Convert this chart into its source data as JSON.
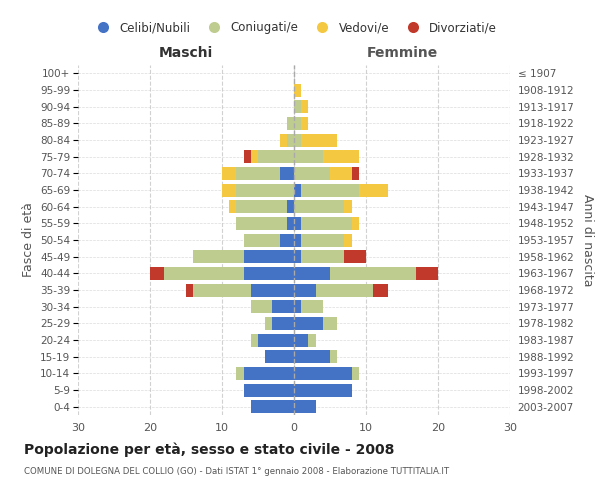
{
  "age_groups": [
    "0-4",
    "5-9",
    "10-14",
    "15-19",
    "20-24",
    "25-29",
    "30-34",
    "35-39",
    "40-44",
    "45-49",
    "50-54",
    "55-59",
    "60-64",
    "65-69",
    "70-74",
    "75-79",
    "80-84",
    "85-89",
    "90-94",
    "95-99",
    "100+"
  ],
  "birth_years": [
    "2003-2007",
    "1998-2002",
    "1993-1997",
    "1988-1992",
    "1983-1987",
    "1978-1982",
    "1973-1977",
    "1968-1972",
    "1963-1967",
    "1958-1962",
    "1953-1957",
    "1948-1952",
    "1943-1947",
    "1938-1942",
    "1933-1937",
    "1928-1932",
    "1923-1927",
    "1918-1922",
    "1913-1917",
    "1908-1912",
    "≤ 1907"
  ],
  "males": {
    "celibi": [
      6,
      7,
      7,
      4,
      5,
      3,
      3,
      6,
      7,
      7,
      2,
      1,
      1,
      0,
      2,
      0,
      0,
      0,
      0,
      0,
      0
    ],
    "coniugati": [
      0,
      0,
      1,
      0,
      1,
      1,
      3,
      8,
      11,
      7,
      5,
      7,
      7,
      8,
      6,
      5,
      1,
      1,
      0,
      0,
      0
    ],
    "vedovi": [
      0,
      0,
      0,
      0,
      0,
      0,
      0,
      0,
      0,
      0,
      0,
      0,
      1,
      2,
      2,
      1,
      1,
      0,
      0,
      0,
      0
    ],
    "divorziati": [
      0,
      0,
      0,
      0,
      0,
      0,
      0,
      1,
      2,
      0,
      0,
      0,
      0,
      0,
      0,
      1,
      0,
      0,
      0,
      0,
      0
    ]
  },
  "females": {
    "nubili": [
      3,
      8,
      8,
      5,
      2,
      4,
      1,
      3,
      5,
      1,
      1,
      1,
      0,
      1,
      0,
      0,
      0,
      0,
      0,
      0,
      0
    ],
    "coniugate": [
      0,
      0,
      1,
      1,
      1,
      2,
      3,
      8,
      12,
      6,
      6,
      7,
      7,
      8,
      5,
      4,
      1,
      1,
      1,
      0,
      0
    ],
    "vedove": [
      0,
      0,
      0,
      0,
      0,
      0,
      0,
      0,
      0,
      0,
      1,
      1,
      1,
      4,
      3,
      5,
      5,
      1,
      1,
      1,
      0
    ],
    "divorziate": [
      0,
      0,
      0,
      0,
      0,
      0,
      0,
      2,
      3,
      3,
      0,
      0,
      0,
      0,
      1,
      0,
      0,
      0,
      0,
      0,
      0
    ]
  },
  "colors": {
    "celibi": "#4472C4",
    "coniugati": "#BECC8F",
    "vedovi": "#F5C842",
    "divorziati": "#C0392B"
  },
  "title": "Popolazione per età, sesso e stato civile - 2008",
  "subtitle": "COMUNE DI DOLEGNA DEL COLLIO (GO) - Dati ISTAT 1° gennaio 2008 - Elaborazione TUTTITALIA.IT",
  "xlabel_left": "Maschi",
  "xlabel_right": "Femmine",
  "ylabel_left": "Fasce di età",
  "ylabel_right": "Anni di nascita",
  "legend_labels": [
    "Celibi/Nubili",
    "Coniugati/e",
    "Vedovi/e",
    "Divorziati/e"
  ],
  "xlim": 30,
  "bg_color": "#FFFFFF",
  "grid_color": "#CCCCCC"
}
